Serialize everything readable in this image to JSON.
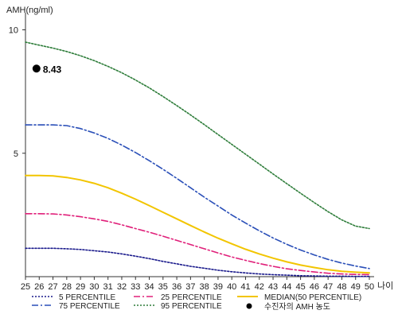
{
  "chart_data": {
    "type": "line",
    "ylabel": "AMH(ng/ml)",
    "xlabel": "나이",
    "x": [
      25,
      26,
      27,
      28,
      29,
      30,
      31,
      32,
      33,
      34,
      35,
      36,
      37,
      38,
      39,
      40,
      41,
      42,
      43,
      44,
      45,
      46,
      47,
      48,
      49,
      50
    ],
    "xlim": [
      25,
      50
    ],
    "ylim": [
      0,
      10.5
    ],
    "yticks": [
      5,
      10
    ],
    "grid": false,
    "legend_position": "bottom",
    "series": [
      {
        "name": "5 PERCENTILE",
        "color": "#1a1a8c",
        "style": "dotted",
        "values": [
          1.15,
          1.15,
          1.15,
          1.13,
          1.1,
          1.05,
          1.0,
          0.92,
          0.83,
          0.73,
          0.62,
          0.52,
          0.42,
          0.34,
          0.26,
          0.2,
          0.15,
          0.11,
          0.08,
          0.06,
          0.04,
          0.03,
          0.02,
          0.02,
          0.01,
          0.01
        ]
      },
      {
        "name": "25 PERCENTILE",
        "color": "#e0207a",
        "style": "dashdot",
        "values": [
          2.55,
          2.55,
          2.54,
          2.5,
          2.43,
          2.34,
          2.24,
          2.1,
          1.95,
          1.8,
          1.64,
          1.47,
          1.3,
          1.13,
          0.96,
          0.8,
          0.66,
          0.53,
          0.42,
          0.32,
          0.25,
          0.19,
          0.14,
          0.11,
          0.09,
          0.08
        ]
      },
      {
        "name": "MEDIAN(50 PERCENTILE)",
        "color": "#f2c500",
        "style": "solid",
        "values": [
          4.1,
          4.1,
          4.08,
          4.02,
          3.92,
          3.78,
          3.6,
          3.38,
          3.14,
          2.88,
          2.61,
          2.34,
          2.07,
          1.81,
          1.56,
          1.33,
          1.11,
          0.92,
          0.75,
          0.6,
          0.47,
          0.37,
          0.28,
          0.22,
          0.18,
          0.15
        ]
      },
      {
        "name": "75 PERCENTILE",
        "color": "#2a4fb8",
        "style": "dashdot",
        "values": [
          6.15,
          6.15,
          6.15,
          6.12,
          6.0,
          5.82,
          5.6,
          5.33,
          5.03,
          4.7,
          4.35,
          3.98,
          3.6,
          3.22,
          2.86,
          2.5,
          2.17,
          1.86,
          1.57,
          1.31,
          1.08,
          0.88,
          0.7,
          0.55,
          0.43,
          0.33
        ]
      },
      {
        "name": "95 PERCENTILE",
        "color": "#2e7d3a",
        "style": "dotted",
        "values": [
          9.5,
          9.38,
          9.26,
          9.12,
          8.95,
          8.75,
          8.52,
          8.26,
          7.97,
          7.65,
          7.3,
          6.93,
          6.55,
          6.16,
          5.76,
          5.36,
          4.96,
          4.56,
          4.16,
          3.77,
          3.38,
          3.0,
          2.63,
          2.3,
          2.05,
          1.95
        ]
      }
    ],
    "patient": {
      "name": "수진자의 AMH 농도",
      "label": "8.43",
      "x": 25.8,
      "y": 8.43,
      "color": "#000000"
    }
  }
}
